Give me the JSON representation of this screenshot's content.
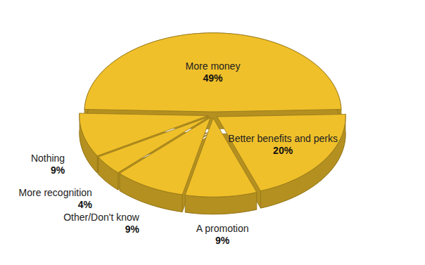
{
  "chart_data": {
    "type": "pie",
    "categories": [
      "More money",
      "Better benefits and perks",
      "A promotion",
      "Other/Don't know",
      "More recognition",
      "Nothing"
    ],
    "values": [
      49,
      20,
      9,
      9,
      4,
      9
    ],
    "value_labels": [
      "49%",
      "20%",
      "9%",
      "9%",
      "4%",
      "9%"
    ],
    "data_labels": true,
    "color": "#f0c02a",
    "tick_labels": false
  }
}
